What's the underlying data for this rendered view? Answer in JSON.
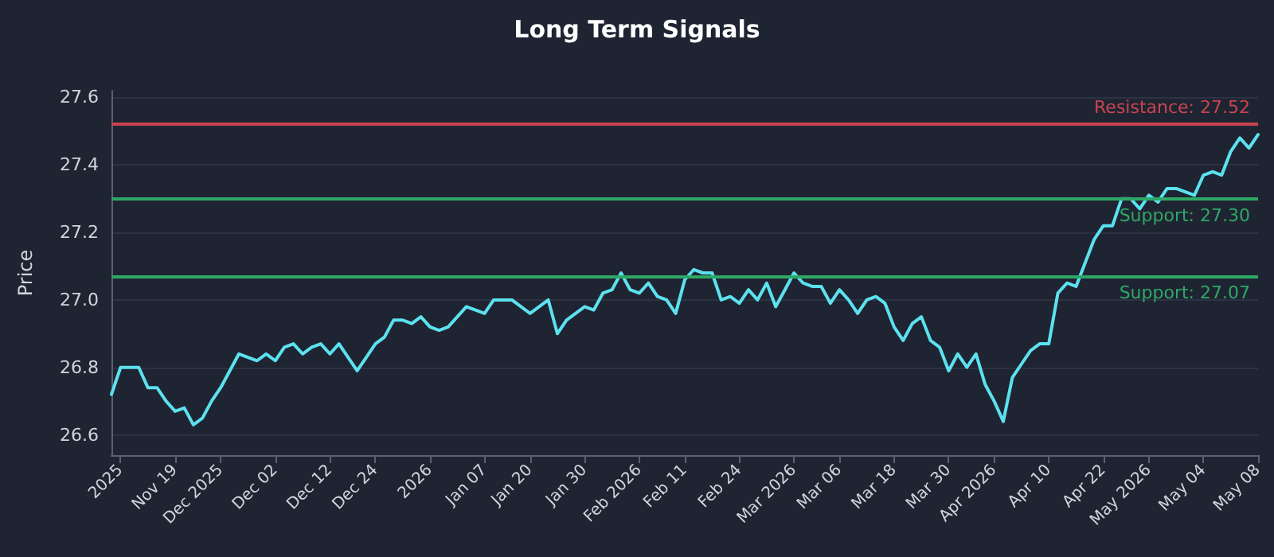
{
  "chart_data": {
    "type": "line",
    "title": "Long Term Signals",
    "ylabel": "Price",
    "categories": [
      null,
      "2025",
      null,
      null,
      null,
      null,
      null,
      "Nov 19",
      null,
      null,
      null,
      null,
      "Dec 2025",
      null,
      null,
      null,
      null,
      null,
      "Dec 02",
      null,
      null,
      null,
      null,
      null,
      "Dec 12",
      null,
      null,
      null,
      null,
      "Dec 24",
      null,
      null,
      null,
      null,
      null,
      "2026",
      null,
      null,
      null,
      null,
      null,
      "Jan 07",
      null,
      null,
      null,
      null,
      "Jan 20",
      null,
      null,
      null,
      null,
      null,
      "Jan 30",
      null,
      null,
      null,
      null,
      null,
      "Feb 2026",
      null,
      null,
      null,
      null,
      "Feb 11",
      null,
      null,
      null,
      null,
      null,
      "Feb 24",
      null,
      null,
      null,
      null,
      null,
      "Mar 2026",
      null,
      null,
      null,
      null,
      "Mar 06",
      null,
      null,
      null,
      null,
      null,
      "Mar 18",
      null,
      null,
      null,
      null,
      null,
      "Mar 30",
      null,
      null,
      null,
      null,
      "Apr 2026",
      null,
      null,
      null,
      null,
      null,
      "Apr 10",
      null,
      null,
      null,
      null,
      null,
      "Apr 22",
      null,
      null,
      null,
      null,
      "May 2026",
      null,
      null,
      null,
      null,
      null,
      "May 04",
      null,
      null,
      null,
      null,
      null,
      "May 08"
    ],
    "series": [
      {
        "color": "#5ce1ee",
        "values": [
          26.72,
          26.8,
          26.8,
          26.8,
          26.74,
          26.74,
          26.7,
          26.67,
          26.68,
          26.63,
          26.65,
          26.7,
          26.74,
          26.79,
          26.84,
          26.83,
          26.82,
          26.84,
          26.82,
          26.86,
          26.87,
          26.84,
          26.86,
          26.87,
          26.84,
          26.87,
          26.83,
          26.79,
          26.83,
          26.87,
          26.89,
          26.94,
          26.94,
          26.93,
          26.95,
          26.92,
          26.91,
          26.92,
          26.95,
          26.98,
          26.97,
          26.96,
          27.0,
          27.0,
          27.0,
          26.98,
          26.96,
          26.98,
          27.0,
          26.9,
          26.94,
          26.96,
          26.98,
          26.97,
          27.02,
          27.03,
          27.08,
          27.03,
          27.02,
          27.05,
          27.01,
          27.0,
          26.96,
          27.06,
          27.09,
          27.08,
          27.08,
          27.0,
          27.01,
          26.99,
          27.03,
          27.0,
          27.05,
          26.98,
          27.03,
          27.08,
          27.05,
          27.04,
          27.04,
          26.99,
          27.03,
          27.0,
          26.96,
          27.0,
          27.01,
          26.99,
          26.92,
          26.88,
          26.93,
          26.95,
          26.88,
          26.86,
          26.79,
          26.84,
          26.8,
          26.84,
          26.75,
          26.7,
          26.64,
          26.77,
          26.81,
          26.85,
          26.87,
          26.87,
          27.02,
          27.05,
          27.04,
          27.11,
          27.18,
          27.22,
          27.22,
          27.3,
          27.3,
          27.27,
          27.31,
          27.29,
          27.33,
          27.33,
          27.32,
          27.31,
          27.37,
          27.38,
          27.37,
          27.44,
          27.48,
          27.45,
          27.49
        ]
      }
    ],
    "ylim": [
      26.54,
      27.62
    ],
    "yticks": [
      {
        "value": 26.6,
        "label": "26.6"
      },
      {
        "value": 26.8,
        "label": "26.8"
      },
      {
        "value": 27,
        "label": "27.0"
      },
      {
        "value": 27.2,
        "label": "27.2"
      },
      {
        "value": 27.4,
        "label": "27.4"
      },
      {
        "value": 27.6,
        "label": "27.6"
      }
    ],
    "ref_lines": [
      {
        "axis": "y",
        "value": 27.52,
        "label": "Resistance: 27.52",
        "color": "#c9444f"
      },
      {
        "axis": "y",
        "value": 27.3,
        "label": "Support: 27.30",
        "color": "#2ea866"
      },
      {
        "axis": "y",
        "value": 27.07,
        "label": "Support: 27.07",
        "color": "#2ea866"
      }
    ],
    "grid": "y",
    "marker": "none",
    "line_style": "solid"
  }
}
